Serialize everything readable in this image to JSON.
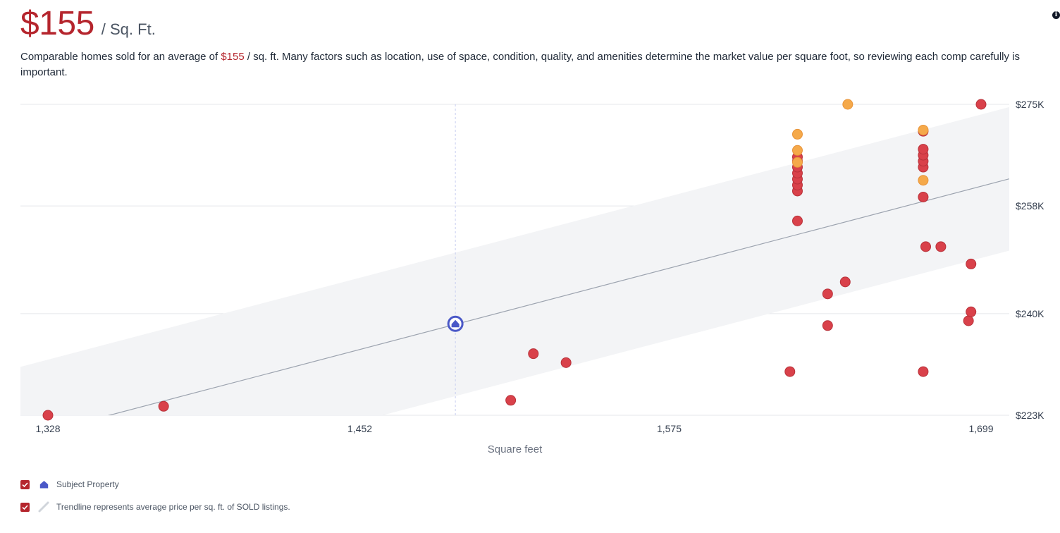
{
  "header": {
    "price": "$155",
    "unit": "/ Sq. Ft."
  },
  "description": {
    "before": "Comparable homes sold for an average of ",
    "price": "$155",
    "after": " / sq. ft. Many factors such as location, use of space, condition, quality, and amenities determine the market value per square foot, so reviewing each comp carefully is important."
  },
  "legend": {
    "subject_label": "Subject Property",
    "trend_label": "Trendline represents average price per sq. ft. of SOLD listings."
  },
  "colors": {
    "accent": "#b5252d",
    "sold_point": "#d9414a",
    "pending_point": "#f5a94a",
    "subject": "#4a58c7",
    "band": "#f3f4f6",
    "trend": "#9ca3af"
  },
  "chart_data": {
    "type": "scatter",
    "xlabel": "Square feet",
    "ylabel": "",
    "xlim": [
      1328,
      1699
    ],
    "ylim": [
      223000,
      275000
    ],
    "x_ticks": [
      {
        "value": 1328,
        "label": "1,328"
      },
      {
        "value": 1452,
        "label": "1,452"
      },
      {
        "value": 1575,
        "label": "1,575"
      },
      {
        "value": 1699,
        "label": "1,699"
      }
    ],
    "y_ticks": [
      {
        "value": 223000,
        "label": "$223K"
      },
      {
        "value": 240000,
        "label": "$240K"
      },
      {
        "value": 258000,
        "label": "$258K"
      },
      {
        "value": 275000,
        "label": "$275K"
      }
    ],
    "trendline": {
      "start": [
        1328,
        220300
      ],
      "end": [
        1699,
        261300
      ],
      "band_width": 12000
    },
    "subject": {
      "x": 1490,
      "y": 238300
    },
    "series": [
      {
        "kind": "sold",
        "points": [
          [
            1328,
            223000
          ],
          [
            1374,
            224500
          ],
          [
            1512,
            225500
          ],
          [
            1521,
            233300
          ],
          [
            1534,
            231800
          ],
          [
            1623,
            230300
          ],
          [
            1626,
            255500
          ],
          [
            1626,
            260500
          ],
          [
            1626,
            261500
          ],
          [
            1626,
            262500
          ],
          [
            1626,
            263500
          ],
          [
            1626,
            264500
          ],
          [
            1626,
            265500
          ],
          [
            1626,
            266200
          ],
          [
            1638,
            238000
          ],
          [
            1638,
            243300
          ],
          [
            1645,
            245300
          ],
          [
            1676,
            230300
          ],
          [
            1677,
            251200
          ],
          [
            1683,
            251200
          ],
          [
            1676,
            259500
          ],
          [
            1676,
            264500
          ],
          [
            1676,
            265500
          ],
          [
            1676,
            266500
          ],
          [
            1676,
            267500
          ],
          [
            1676,
            270500
          ],
          [
            1694,
            238800
          ],
          [
            1695,
            240300
          ],
          [
            1695,
            248300
          ],
          [
            1699,
            275000
          ]
        ]
      },
      {
        "kind": "pending",
        "points": [
          [
            1626,
            270000
          ],
          [
            1626,
            267300
          ],
          [
            1626,
            265300
          ],
          [
            1646,
            275000
          ],
          [
            1676,
            270700
          ],
          [
            1676,
            262300
          ]
        ]
      }
    ]
  }
}
